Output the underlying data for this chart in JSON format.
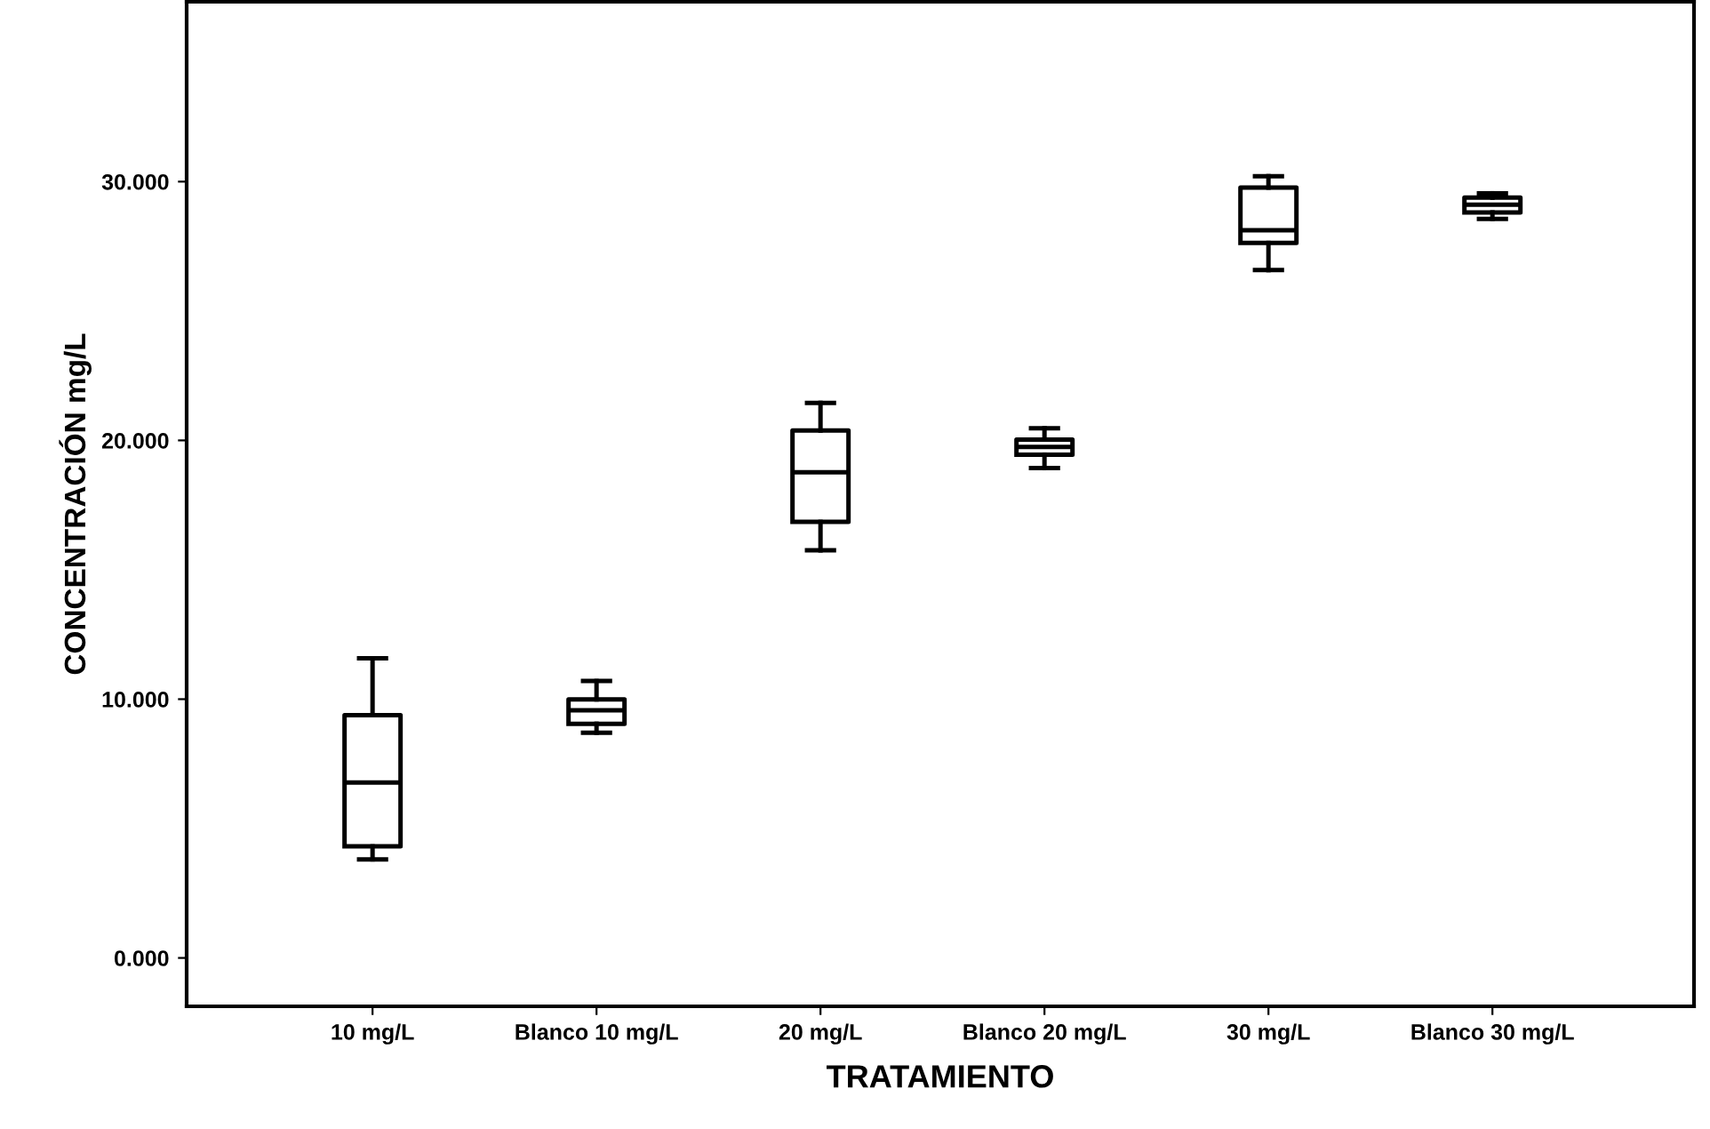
{
  "chart_data": {
    "type": "box",
    "xlabel": "TRATAMIENTO",
    "ylabel": "CONCENTRACIÓN mg/L",
    "categories": [
      "10 mg/L",
      "Blanco 10 mg/L",
      "20 mg/L",
      "Blanco 20 mg/L",
      "30 mg/L",
      "Blanco 30 mg/L"
    ],
    "boxes": [
      {
        "low": 3.81,
        "q1": 4.31,
        "median": 6.78,
        "q3": 9.38,
        "high": 11.58
      },
      {
        "low": 8.7,
        "q1": 9.05,
        "median": 9.57,
        "q3": 9.99,
        "high": 10.7
      },
      {
        "low": 15.75,
        "q1": 16.85,
        "median": 18.77,
        "q3": 20.38,
        "high": 21.45
      },
      {
        "low": 18.93,
        "q1": 19.45,
        "median": 19.75,
        "q3": 20.03,
        "high": 20.47
      },
      {
        "low": 26.58,
        "q1": 27.63,
        "median": 28.12,
        "q3": 29.77,
        "high": 30.21
      },
      {
        "low": 28.56,
        "q1": 28.81,
        "median": 29.11,
        "q3": 29.38,
        "high": 29.55
      }
    ],
    "color": "#000000",
    "ylim": [
      -1.87,
      36.95
    ],
    "yticks": [
      {
        "value": 0,
        "label": "0.000"
      },
      {
        "value": 10,
        "label": "10.000"
      },
      {
        "value": 20,
        "label": "20.000"
      },
      {
        "value": 30,
        "label": "30.000"
      }
    ],
    "grid": false
  }
}
